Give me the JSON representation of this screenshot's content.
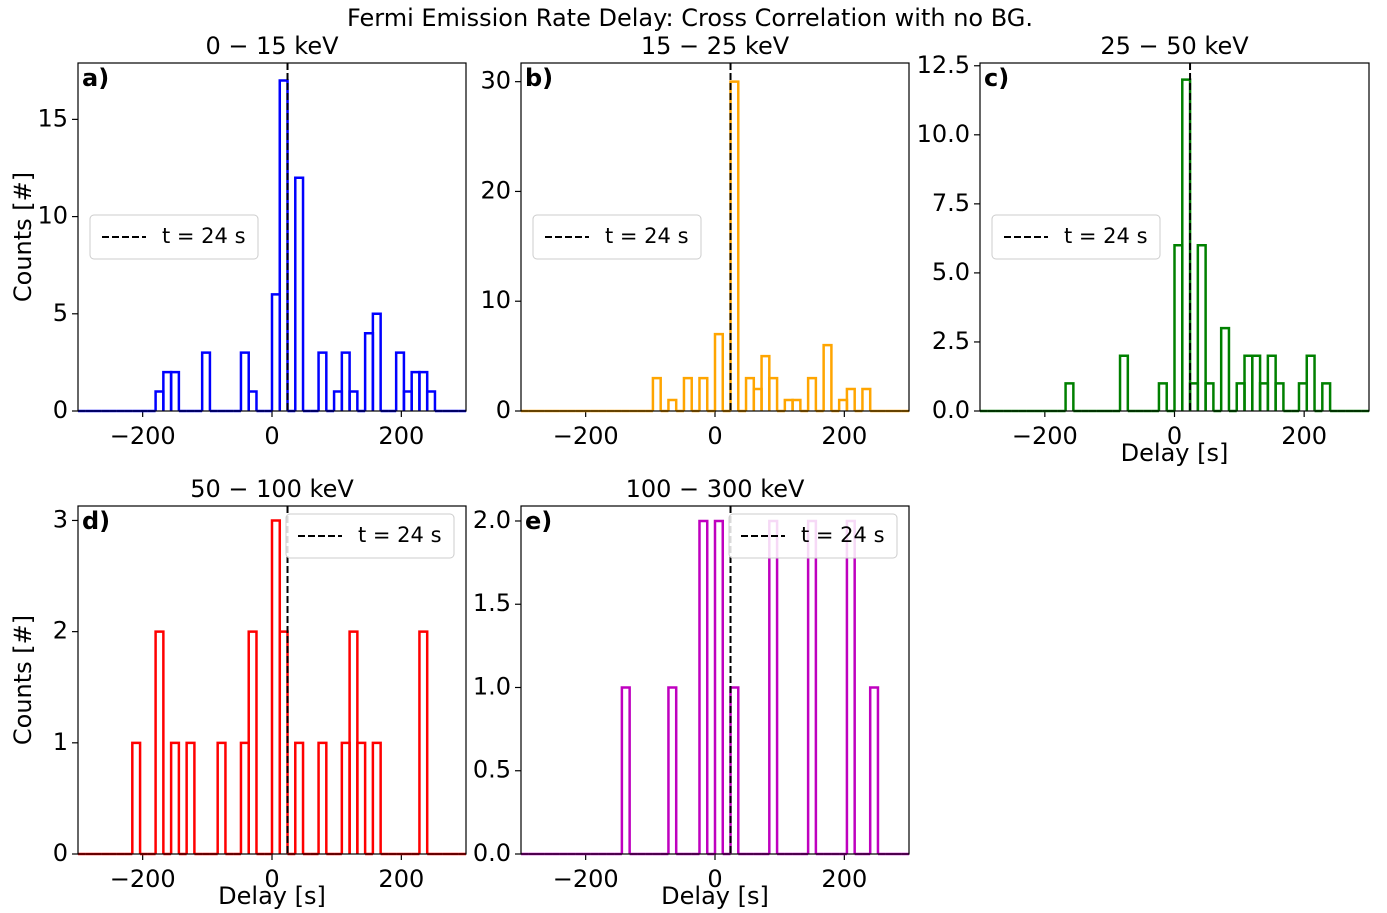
{
  "title": "Fermi Emission Rate Delay: Cross Correlation with no BG.",
  "chart_data": [
    {
      "type": "histogram",
      "title": "0 − 15 keV",
      "panel_label": "a)",
      "ylabel": "Counts [#]",
      "color": "#0000ff",
      "bins": [
        -300,
        -288,
        -276,
        -264,
        -252,
        -240,
        -228,
        -216,
        -204,
        -192,
        -180,
        -168,
        -156,
        -144,
        -132,
        -120,
        -108,
        -96,
        -84,
        -72,
        -60,
        -48,
        -36,
        -24,
        -12,
        0,
        12,
        24,
        36,
        48,
        60,
        72,
        84,
        96,
        108,
        120,
        132,
        144,
        156,
        168,
        180,
        192,
        204,
        216,
        228,
        240,
        252,
        264,
        276,
        288,
        300
      ],
      "counts": [
        0,
        0,
        0,
        0,
        0,
        0,
        0,
        0,
        0,
        0,
        1,
        2,
        2,
        0,
        0,
        0,
        3,
        0,
        0,
        0,
        0,
        3,
        1,
        0,
        0,
        6,
        17,
        0,
        12,
        0,
        0,
        3,
        0,
        1,
        3,
        1,
        0,
        4,
        5,
        0,
        0,
        3,
        1,
        2,
        2,
        1,
        0,
        0,
        0,
        0
      ],
      "xlim": [
        -300,
        300
      ],
      "xticks": [
        {
          "value": -200,
          "label": "−200"
        },
        0,
        200
      ],
      "ylim": [
        0,
        17.9
      ],
      "yticks": [
        0,
        5,
        10,
        15
      ],
      "vline": {
        "x": 24,
        "label": "t = 24 s",
        "color": "#000000"
      },
      "legend": "center left"
    },
    {
      "type": "histogram",
      "title": "15 − 25 keV",
      "panel_label": "b)",
      "color": "#ffa500",
      "bins": [
        -300,
        -288,
        -276,
        -264,
        -252,
        -240,
        -228,
        -216,
        -204,
        -192,
        -180,
        -168,
        -156,
        -144,
        -132,
        -120,
        -108,
        -96,
        -84,
        -72,
        -60,
        -48,
        -36,
        -24,
        -12,
        0,
        12,
        24,
        36,
        48,
        60,
        72,
        84,
        96,
        108,
        120,
        132,
        144,
        156,
        168,
        180,
        192,
        204,
        216,
        228,
        240,
        252,
        264,
        276,
        288,
        300
      ],
      "counts": [
        0,
        0,
        0,
        0,
        0,
        0,
        0,
        0,
        0,
        0,
        0,
        0,
        0,
        0,
        0,
        0,
        0,
        3,
        0,
        1,
        0,
        3,
        0,
        3,
        0,
        7,
        0,
        30,
        0,
        3,
        2,
        5,
        3,
        0,
        1,
        1,
        0,
        3,
        0,
        6,
        0,
        1,
        2,
        0,
        2,
        0,
        0,
        0,
        0,
        0
      ],
      "xlim": [
        -300,
        300
      ],
      "xticks": [
        {
          "value": -200,
          "label": "−200"
        },
        0,
        200
      ],
      "ylim": [
        0,
        31.7
      ],
      "yticks": [
        0,
        10,
        20,
        30
      ],
      "vline": {
        "x": 24,
        "label": "t = 24 s",
        "color": "#000000"
      },
      "legend": "center left"
    },
    {
      "type": "histogram",
      "title": "25 − 50 keV",
      "panel_label": "c)",
      "xlabel": "Delay [s]",
      "color": "#008000",
      "bins": [
        -300,
        -288,
        -276,
        -264,
        -252,
        -240,
        -228,
        -216,
        -204,
        -192,
        -180,
        -168,
        -156,
        -144,
        -132,
        -120,
        -108,
        -96,
        -84,
        -72,
        -60,
        -48,
        -36,
        -24,
        -12,
        0,
        12,
        24,
        36,
        48,
        60,
        72,
        84,
        96,
        108,
        120,
        132,
        144,
        156,
        168,
        180,
        192,
        204,
        216,
        228,
        240,
        252,
        264,
        276,
        288,
        300
      ],
      "counts": [
        0,
        0,
        0,
        0,
        0,
        0,
        0,
        0,
        0,
        0,
        0,
        1,
        0,
        0,
        0,
        0,
        0,
        0,
        2,
        0,
        0,
        0,
        0,
        1,
        0,
        6,
        12,
        1,
        6,
        1,
        0,
        3,
        0,
        1,
        2,
        2,
        1,
        2,
        1,
        0,
        0,
        1,
        2,
        0,
        1,
        0,
        0,
        0,
        0,
        0
      ],
      "xlim": [
        -300,
        300
      ],
      "xticks": [
        {
          "value": -200,
          "label": "−200"
        },
        0,
        200
      ],
      "ylim": [
        0,
        12.6
      ],
      "yticks": [
        {
          "value": 0,
          "label": "0.0"
        },
        2.5,
        {
          "value": 5,
          "label": "5.0"
        },
        7.5,
        {
          "value": 10,
          "label": "10.0"
        },
        12.5
      ],
      "vline": {
        "x": 24,
        "label": "t = 24 s",
        "color": "#000000"
      },
      "legend": "center left"
    },
    {
      "type": "histogram",
      "title": "50 − 100 keV",
      "panel_label": "d)",
      "ylabel": "Counts [#]",
      "xlabel": "Delay [s]",
      "color": "#ff0000",
      "bins": [
        -300,
        -288,
        -276,
        -264,
        -252,
        -240,
        -228,
        -216,
        -204,
        -192,
        -180,
        -168,
        -156,
        -144,
        -132,
        -120,
        -108,
        -96,
        -84,
        -72,
        -60,
        -48,
        -36,
        -24,
        -12,
        0,
        12,
        24,
        36,
        48,
        60,
        72,
        84,
        96,
        108,
        120,
        132,
        144,
        156,
        168,
        180,
        192,
        204,
        216,
        228,
        240,
        252,
        264,
        276,
        288,
        300
      ],
      "counts": [
        0,
        0,
        0,
        0,
        0,
        0,
        0,
        1,
        0,
        0,
        2,
        0,
        1,
        0,
        1,
        0,
        0,
        0,
        1,
        0,
        0,
        1,
        2,
        0,
        0,
        3,
        2,
        0,
        1,
        0,
        0,
        1,
        0,
        0,
        1,
        2,
        1,
        0,
        1,
        0,
        0,
        0,
        0,
        0,
        2,
        0,
        0,
        0,
        0,
        0
      ],
      "xlim": [
        -300,
        300
      ],
      "xticks": [
        {
          "value": -200,
          "label": "−200"
        },
        0,
        200
      ],
      "ylim": [
        0,
        3.13
      ],
      "yticks": [
        0,
        1,
        2,
        3
      ],
      "vline": {
        "x": 24,
        "label": "t = 24 s",
        "color": "#000000"
      },
      "legend": "upper right"
    },
    {
      "type": "histogram",
      "title": "100 − 300 keV",
      "panel_label": "e)",
      "xlabel": "Delay [s]",
      "color": "#bf00bf",
      "bins": [
        -300,
        -288,
        -276,
        -264,
        -252,
        -240,
        -228,
        -216,
        -204,
        -192,
        -180,
        -168,
        -156,
        -144,
        -132,
        -120,
        -108,
        -96,
        -84,
        -72,
        -60,
        -48,
        -36,
        -24,
        -12,
        0,
        12,
        24,
        36,
        48,
        60,
        72,
        84,
        96,
        108,
        120,
        132,
        144,
        156,
        168,
        180,
        192,
        204,
        216,
        228,
        240,
        252,
        264,
        276,
        288,
        300
      ],
      "counts": [
        0,
        0,
        0,
        0,
        0,
        0,
        0,
        0,
        0,
        0,
        0,
        0,
        0,
        1,
        0,
        0,
        0,
        0,
        0,
        1,
        0,
        0,
        0,
        2,
        0,
        2,
        0,
        1,
        0,
        0,
        0,
        0,
        2,
        0,
        0,
        0,
        0,
        2,
        0,
        0,
        0,
        0,
        2,
        0,
        0,
        1,
        0,
        0,
        0,
        0
      ],
      "xlim": [
        -300,
        300
      ],
      "xticks": [
        {
          "value": -200,
          "label": "−200"
        },
        0,
        200
      ],
      "ylim": [
        0,
        2.09
      ],
      "yticks": [
        {
          "value": 0,
          "label": "0.0"
        },
        0.5,
        {
          "value": 1,
          "label": "1.0"
        },
        1.5,
        {
          "value": 2,
          "label": "2.0"
        }
      ],
      "vline": {
        "x": 24,
        "label": "t = 24 s",
        "color": "#000000"
      },
      "legend": "upper right"
    }
  ]
}
